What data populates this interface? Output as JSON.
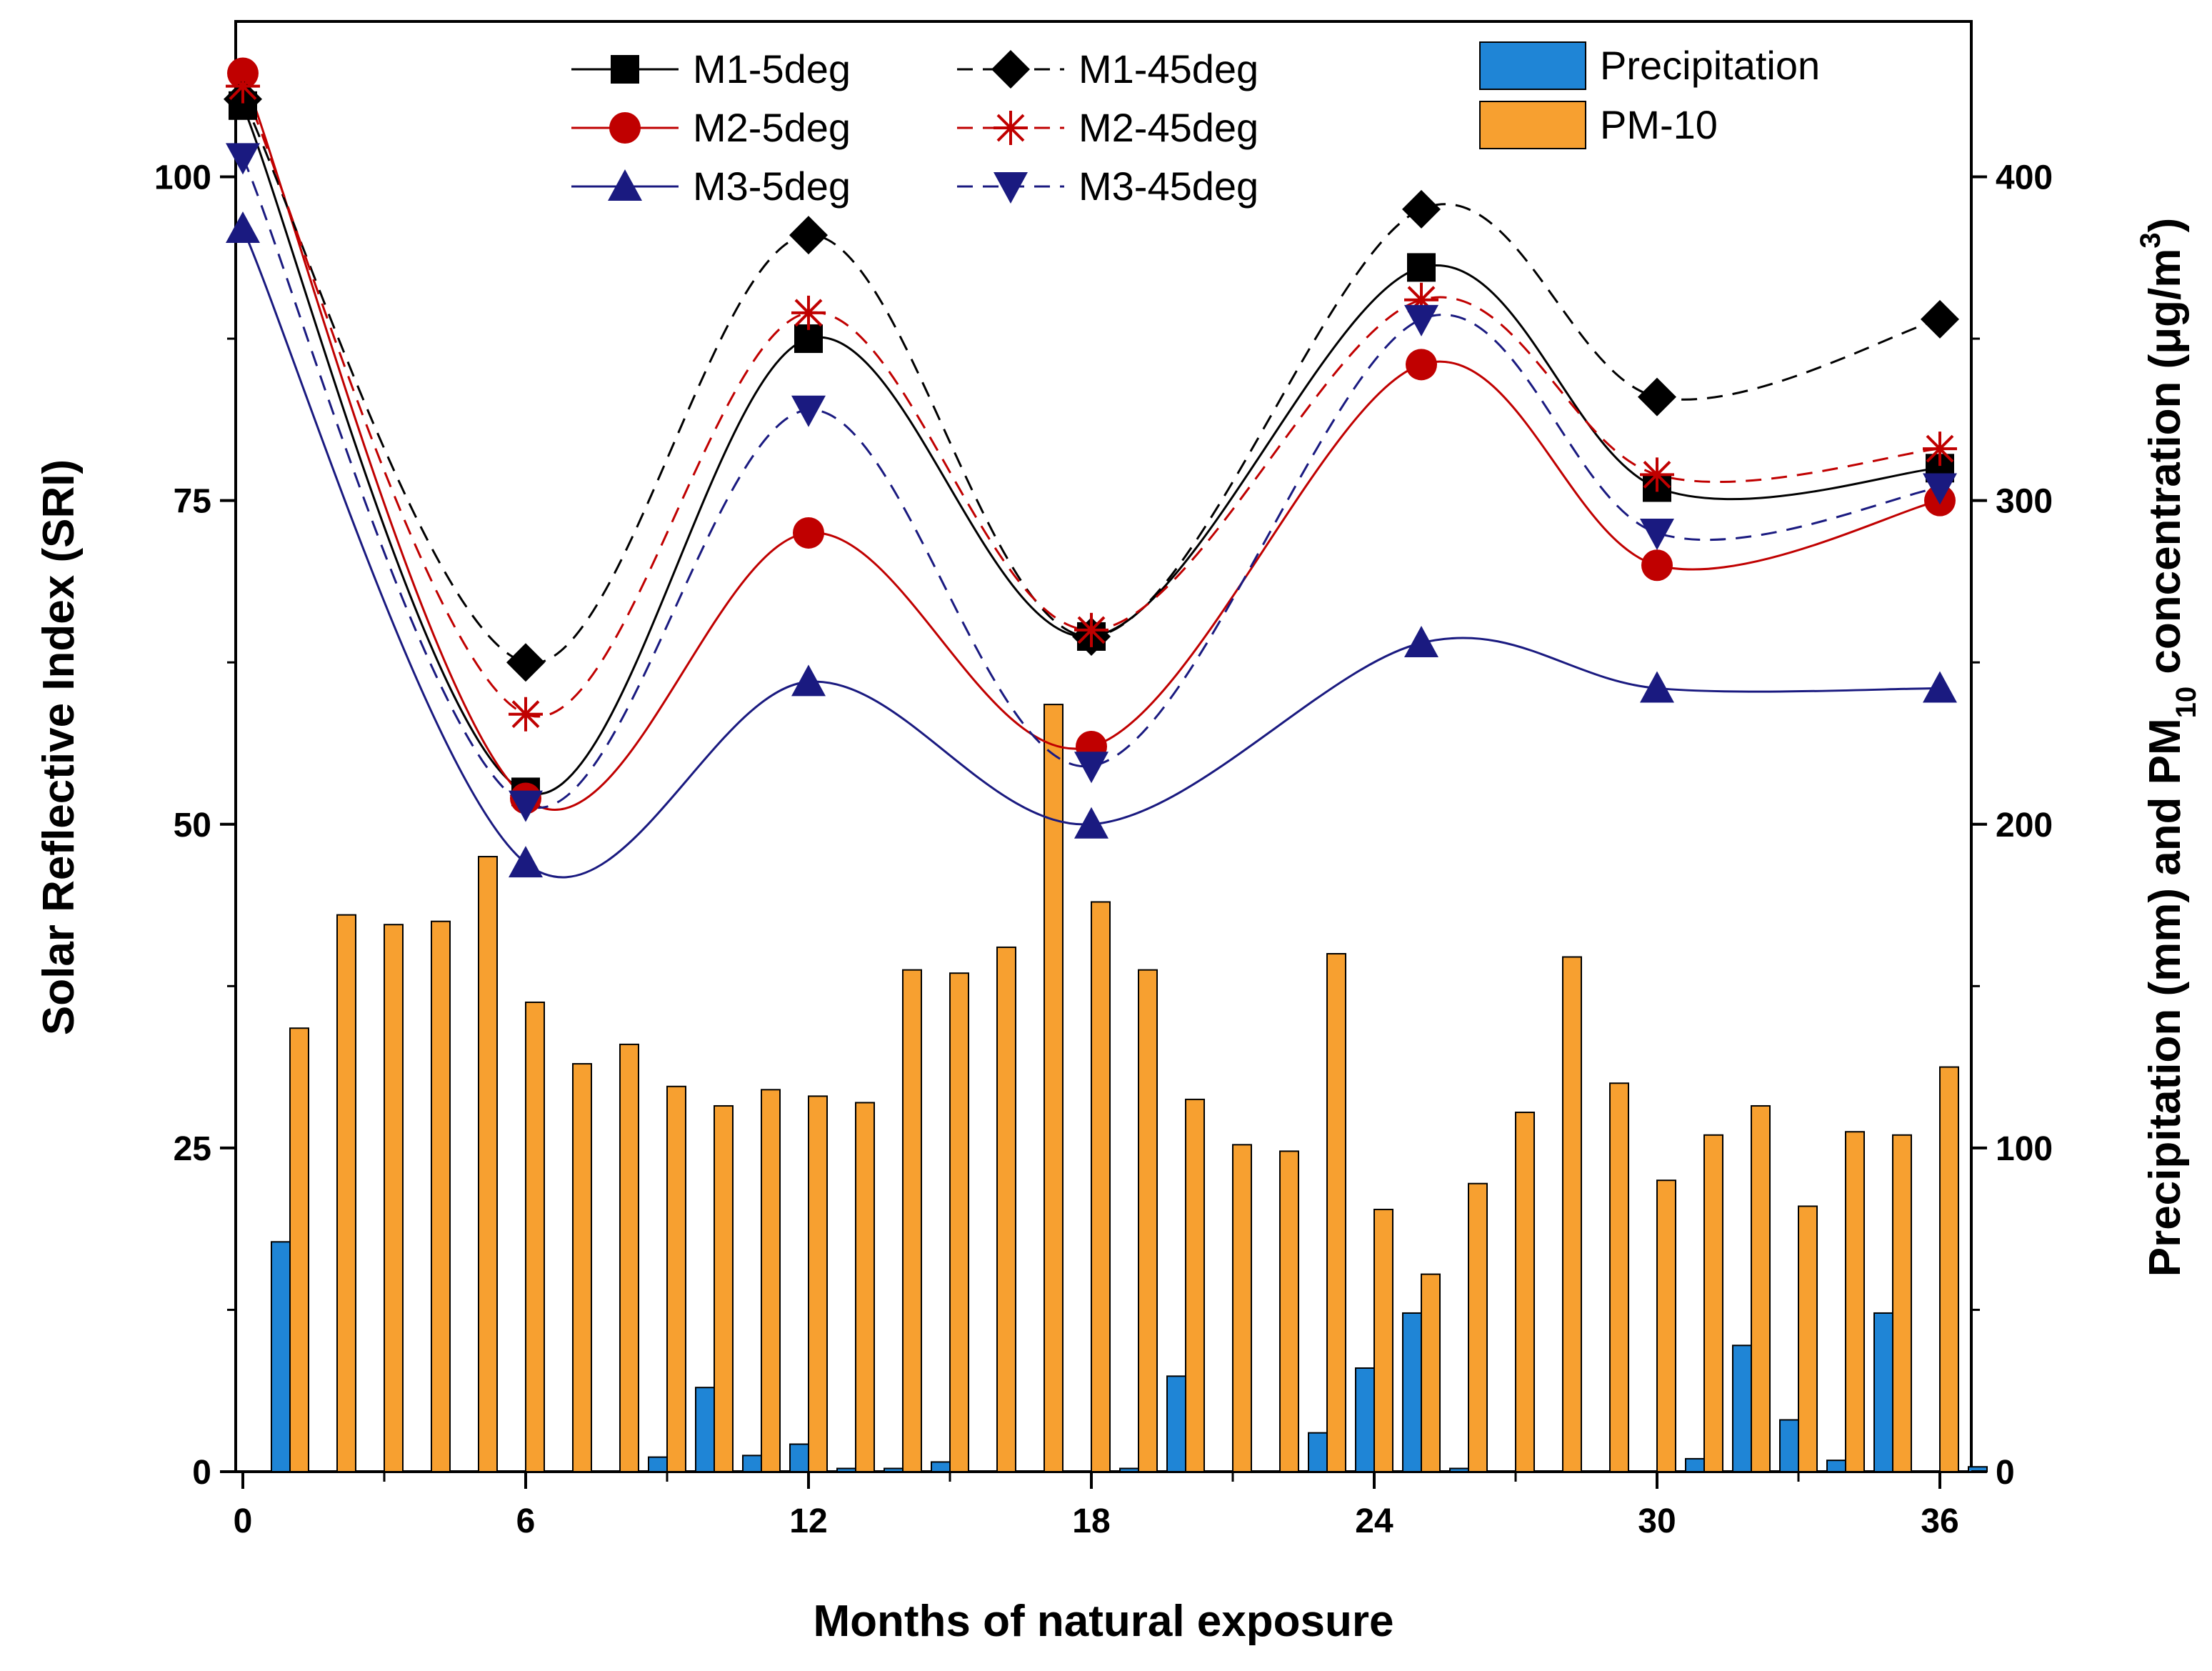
{
  "chart_data": {
    "type": "line+bar",
    "xlabel": "Months of natural exposure",
    "ylabel_left": "Solar Reflective Index (SRI)",
    "ylabel_right": {
      "part1": "Precipitation (mm) and PM",
      "sub1": "10",
      "part2": " concentration (μg/m",
      "sup": "3",
      "part3": ")"
    },
    "xlim": [
      0,
      37
    ],
    "ylim_left": [
      0,
      112
    ],
    "ylim_right": [
      0,
      448
    ],
    "x_ticks": [
      0,
      6,
      12,
      18,
      24,
      30,
      36
    ],
    "x_tick_labels": [
      "0",
      "6",
      "12",
      "18",
      "24",
      "30",
      "36"
    ],
    "y_left_ticks": [
      0,
      25,
      50,
      75,
      100
    ],
    "y_left_tick_labels": [
      "0",
      "25",
      "50",
      "75",
      "100"
    ],
    "y_right_ticks": [
      0,
      100,
      200,
      300,
      400
    ],
    "y_right_tick_labels": [
      "0",
      "100",
      "200",
      "300",
      "400"
    ],
    "months": [
      0,
      6,
      12,
      18,
      25,
      30,
      36
    ],
    "series": [
      {
        "name": "M1-5deg",
        "color": "#000000",
        "dash": "solid",
        "marker": "square",
        "values": [
          105.5,
          52.5,
          87.5,
          64.5,
          93,
          76,
          77.5
        ]
      },
      {
        "name": "M2-5deg",
        "color": "#c00000",
        "dash": "solid",
        "marker": "circle",
        "values": [
          108,
          52,
          72.5,
          56,
          85.5,
          70,
          75
        ]
      },
      {
        "name": "M3-5deg",
        "color": "#1a1a80",
        "dash": "solid",
        "marker": "triangle-up",
        "values": [
          96,
          47,
          61,
          50,
          64,
          60.5,
          60.5
        ]
      },
      {
        "name": "M1-45deg",
        "color": "#000000",
        "dash": "dashed",
        "marker": "diamond",
        "values": [
          106,
          62.5,
          95.5,
          64.5,
          97.5,
          83,
          89
        ]
      },
      {
        "name": "M2-45deg",
        "color": "#c00000",
        "dash": "dashed",
        "marker": "asterisk",
        "values": [
          107,
          58.5,
          89.5,
          65,
          90.5,
          77,
          79
        ]
      },
      {
        "name": "M3-45deg",
        "color": "#1a1a80",
        "dash": "dashed",
        "marker": "triangle-down",
        "values": [
          101.5,
          51.5,
          82,
          54.5,
          89,
          72.5,
          76
        ]
      }
    ],
    "bar_series": [
      {
        "name": "Precipitation",
        "color": "#1f85d6",
        "months": [
          1,
          2,
          3,
          4,
          5,
          6,
          7,
          8,
          9,
          10,
          11,
          12,
          13,
          14,
          15,
          16,
          17,
          18,
          19,
          20,
          21,
          22,
          23,
          24,
          25,
          26,
          27,
          28,
          29,
          30,
          31,
          32,
          33,
          34,
          35,
          36,
          37
        ],
        "values": [
          71,
          0,
          0,
          0,
          0,
          0,
          0,
          0,
          4.5,
          26,
          5,
          8.5,
          1,
          1,
          3,
          0,
          0,
          0,
          1,
          29.5,
          0,
          0,
          12,
          32,
          49,
          1,
          0,
          0,
          0,
          0,
          4,
          39,
          16,
          3.5,
          49,
          0,
          1.5
        ]
      },
      {
        "name": "PM-10",
        "color": "#f7a030",
        "months": [
          1,
          2,
          3,
          4,
          5,
          6,
          7,
          8,
          9,
          10,
          11,
          12,
          13,
          14,
          15,
          16,
          17,
          18,
          19,
          20,
          21,
          22,
          23,
          24,
          25,
          26,
          27,
          28,
          29,
          30,
          31,
          32,
          33,
          34,
          35,
          36
        ],
        "values": [
          137,
          172,
          169,
          170,
          190,
          145,
          126,
          132,
          119,
          113,
          118,
          116,
          114,
          155,
          154,
          162,
          237,
          176,
          155,
          115,
          101,
          99,
          160,
          81,
          61,
          89,
          111,
          159,
          120,
          90,
          104,
          113,
          82,
          105,
          104,
          125
        ]
      }
    ],
    "legend": {
      "lines_col1": [
        "M1-5deg",
        "M2-5deg",
        "M3-5deg"
      ],
      "lines_col2": [
        "M1-45deg",
        "M2-45deg",
        "M3-45deg"
      ],
      "bars": [
        "Precipitation",
        "PM-10"
      ]
    }
  }
}
